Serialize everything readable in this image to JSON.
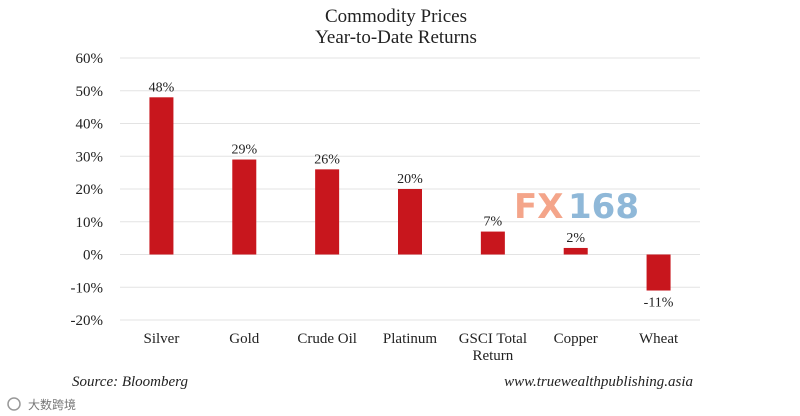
{
  "chart_data": {
    "type": "bar",
    "title": "Commodity Prices",
    "subtitle": "Year-to-Date Returns",
    "categories": [
      "Silver",
      "Gold",
      "Crude Oil",
      "Platinum",
      "GSCI Total Return",
      "Copper",
      "Wheat"
    ],
    "category_lines": [
      [
        "Silver"
      ],
      [
        "Gold"
      ],
      [
        "Crude Oil"
      ],
      [
        "Platinum"
      ],
      [
        "GSCI Total",
        "Return"
      ],
      [
        "Copper"
      ],
      [
        "Wheat"
      ]
    ],
    "values": [
      48,
      29,
      26,
      20,
      7,
      2,
      -11
    ],
    "data_labels": [
      "48%",
      "29%",
      "26%",
      "20%",
      "7%",
      "2%",
      "-11%"
    ],
    "ylim": [
      -20,
      60
    ],
    "yticks": [
      -20,
      -10,
      0,
      10,
      20,
      30,
      40,
      50,
      60
    ],
    "ytick_labels": [
      "-20%",
      "-10%",
      "0%",
      "10%",
      "20%",
      "30%",
      "40%",
      "50%",
      "60%"
    ],
    "grid": true,
    "bar_color": "#c8161d",
    "xlabel": "",
    "ylabel": ""
  },
  "footer": {
    "source": "Source: Bloomberg",
    "site": "www.truewealthpublishing.asia"
  },
  "watermark": {
    "fx_text": "FX",
    "num_text": "168",
    "fx_color": "#f4a58a",
    "num_color": "#8fb8d8",
    "corner_text": "大数跨境"
  }
}
